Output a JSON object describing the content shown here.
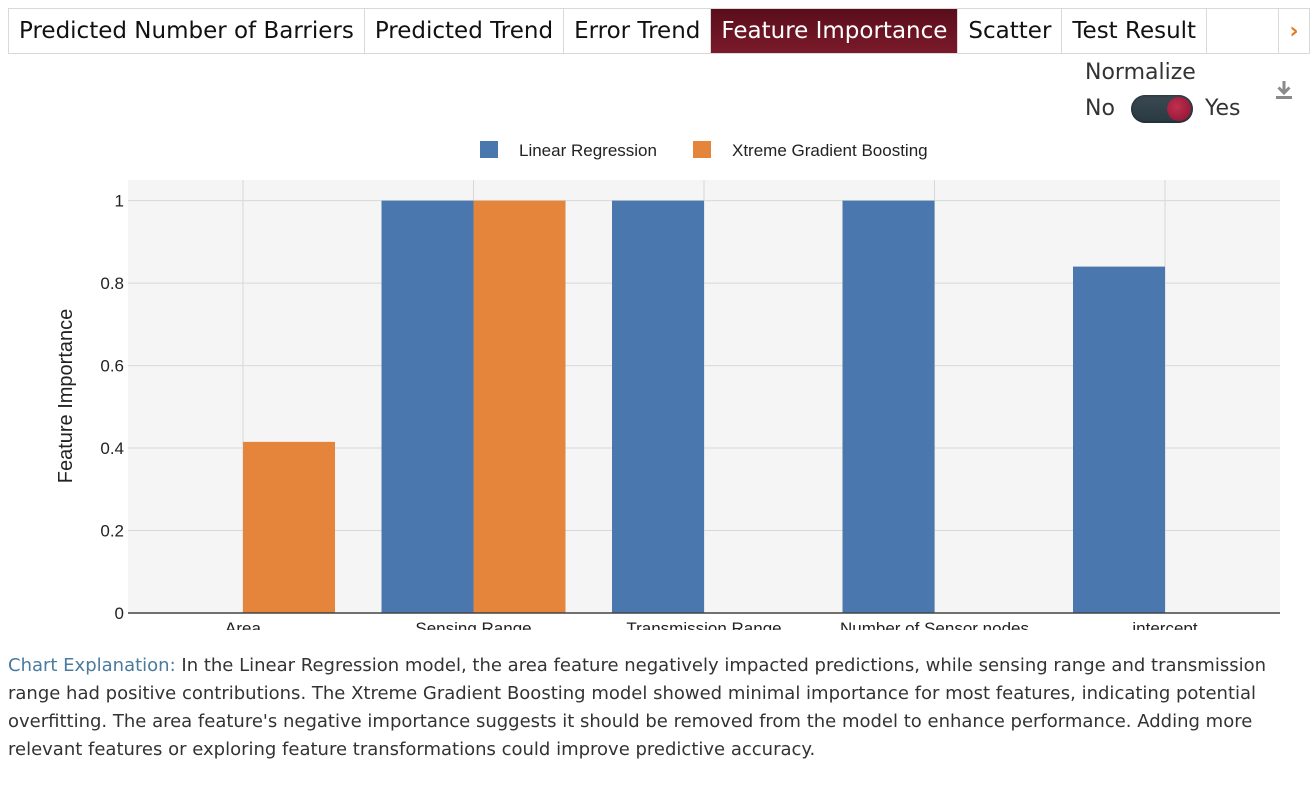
{
  "tabs": [
    {
      "label": "Predicted Number of Barriers",
      "active": false
    },
    {
      "label": "Predicted Trend",
      "active": false
    },
    {
      "label": "Error Trend",
      "active": false
    },
    {
      "label": "Feature Importance",
      "active": true
    },
    {
      "label": "Scatter",
      "active": false
    },
    {
      "label": "Test Result",
      "active": false
    }
  ],
  "normalize": {
    "title": "Normalize",
    "off_label": "No",
    "on_label": "Yes",
    "value": true
  },
  "download_icon": "download-icon",
  "chart_data": {
    "type": "bar",
    "categories": [
      "Area",
      "Sensing Range",
      "Transmission Range",
      "Number of Sensor nodes",
      "intercept"
    ],
    "series": [
      {
        "name": "Linear Regression",
        "color": "#4a77ae",
        "values": [
          0,
          1,
          1,
          1,
          0.84
        ]
      },
      {
        "name": "Xtreme Gradient Boosting",
        "color": "#e5853b",
        "values": [
          0.415,
          1,
          0,
          0,
          0
        ]
      }
    ],
    "ylabel": "Feature Importance",
    "xlabel": "",
    "ylim": [
      0,
      1.05
    ],
    "yticks": [
      0,
      0.2,
      0.4,
      0.6,
      0.8,
      1
    ],
    "ytick_labels": [
      "0",
      "0.2",
      "0.4",
      "0.6",
      "0.8",
      "1"
    ],
    "grid": true,
    "legend_position": "top-center"
  },
  "explanation": {
    "label": "Chart Explanation:",
    "text": "In the Linear Regression model, the area feature negatively impacted predictions, while sensing range and transmission range had positive contributions. The Xtreme Gradient Boosting model showed minimal importance for most features, indicating potential overfitting. The area feature's negative importance suggests it should be removed from the model to enhance performance. Adding more relevant features or exploring feature transformations could improve predictive accuracy."
  }
}
